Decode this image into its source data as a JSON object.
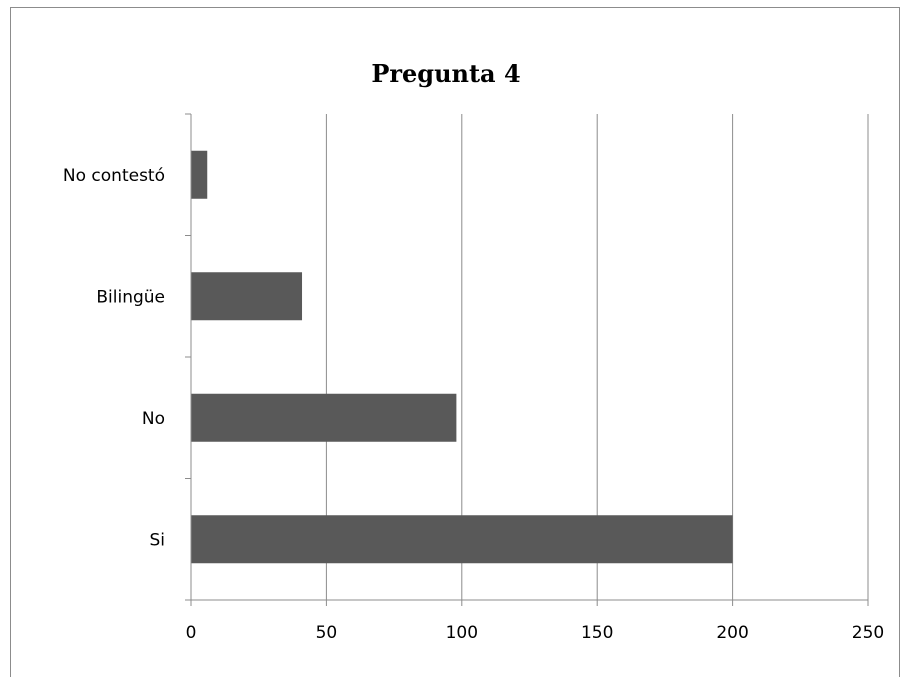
{
  "chart_data": {
    "type": "bar",
    "orientation": "horizontal",
    "title": "Pregunta 4",
    "xlabel": "",
    "ylabel": "",
    "categories": [
      "Si",
      "No",
      "Bilingüe",
      "No contestó"
    ],
    "values": [
      200,
      98,
      41,
      6
    ],
    "xlim": [
      0,
      250
    ],
    "xticks": [
      "0",
      "50",
      "100",
      "150",
      "200",
      "250"
    ],
    "grid": "vertical",
    "legend": "none",
    "bar_color": "#595959"
  }
}
